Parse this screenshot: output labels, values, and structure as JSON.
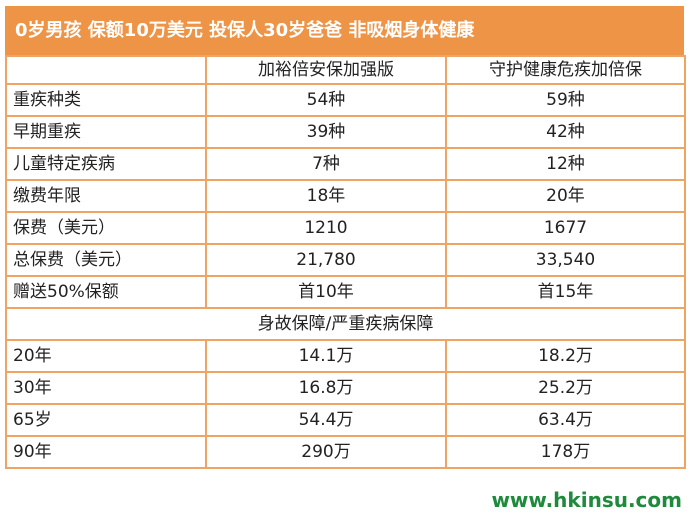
{
  "title": "0岁男孩 保额10万美元 投保人30岁爸爸 非吸烟身体健康",
  "columns": [
    "",
    "加裕倍安保加强版",
    "守护健康危疾加倍保"
  ],
  "rows": [
    {
      "label": "重疾种类",
      "a": "54种",
      "b": "59种"
    },
    {
      "label": "早期重疾",
      "a": "39种",
      "b": "42种"
    },
    {
      "label": "儿童特定疾病",
      "a": "7种",
      "b": "12种"
    },
    {
      "label": "缴费年限",
      "a": "18年",
      "b": "20年"
    },
    {
      "label": "保费（美元）",
      "a": "1210",
      "b": "1677"
    },
    {
      "label": "总保费（美元）",
      "a": "21,780",
      "b": "33,540"
    },
    {
      "label": "赠送50%保额",
      "a": "首10年",
      "b": "首15年"
    }
  ],
  "section_title": "身故保障/严重疾病保障",
  "section_rows": [
    {
      "label": "20年",
      "a": "14.1万",
      "b": "18.2万"
    },
    {
      "label": "30年",
      "a": "16.8万",
      "b": "25.2万"
    },
    {
      "label": "65岁",
      "a": "54.4万",
      "b": "63.4万"
    },
    {
      "label": "90年",
      "a": "290万",
      "b": "178万"
    }
  ],
  "watermark": "www.hkinsu.com",
  "colors": {
    "accent": "#ee9447",
    "border": "#f0a464",
    "watermark": "#1e8a3c"
  }
}
